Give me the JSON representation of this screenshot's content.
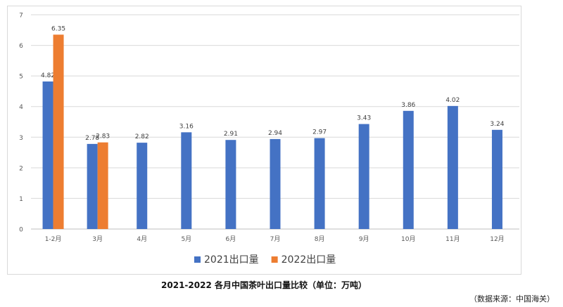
{
  "chart_data": {
    "type": "bar",
    "title": "2021-2022 各月中国茶叶出口量比较（单位：万吨）",
    "source": "（数据来源：中国海关）",
    "categories": [
      "1-2月",
      "3月",
      "4月",
      "5月",
      "6月",
      "7月",
      "8月",
      "9月",
      "10月",
      "11月",
      "12月"
    ],
    "series": [
      {
        "name": "2021出口量",
        "color": "#4472c4",
        "values": [
          4.82,
          2.78,
          2.82,
          3.16,
          2.91,
          2.94,
          2.97,
          3.43,
          3.86,
          4.02,
          3.24
        ]
      },
      {
        "name": "2022出口量",
        "color": "#ed7d31",
        "values": [
          6.35,
          2.83,
          null,
          null,
          null,
          null,
          null,
          null,
          null,
          null,
          null
        ]
      }
    ],
    "ylim": [
      0,
      7
    ],
    "yticks": [
      0,
      1,
      2,
      3,
      4,
      5,
      6,
      7
    ],
    "grid": true,
    "legend_position": "bottom"
  }
}
